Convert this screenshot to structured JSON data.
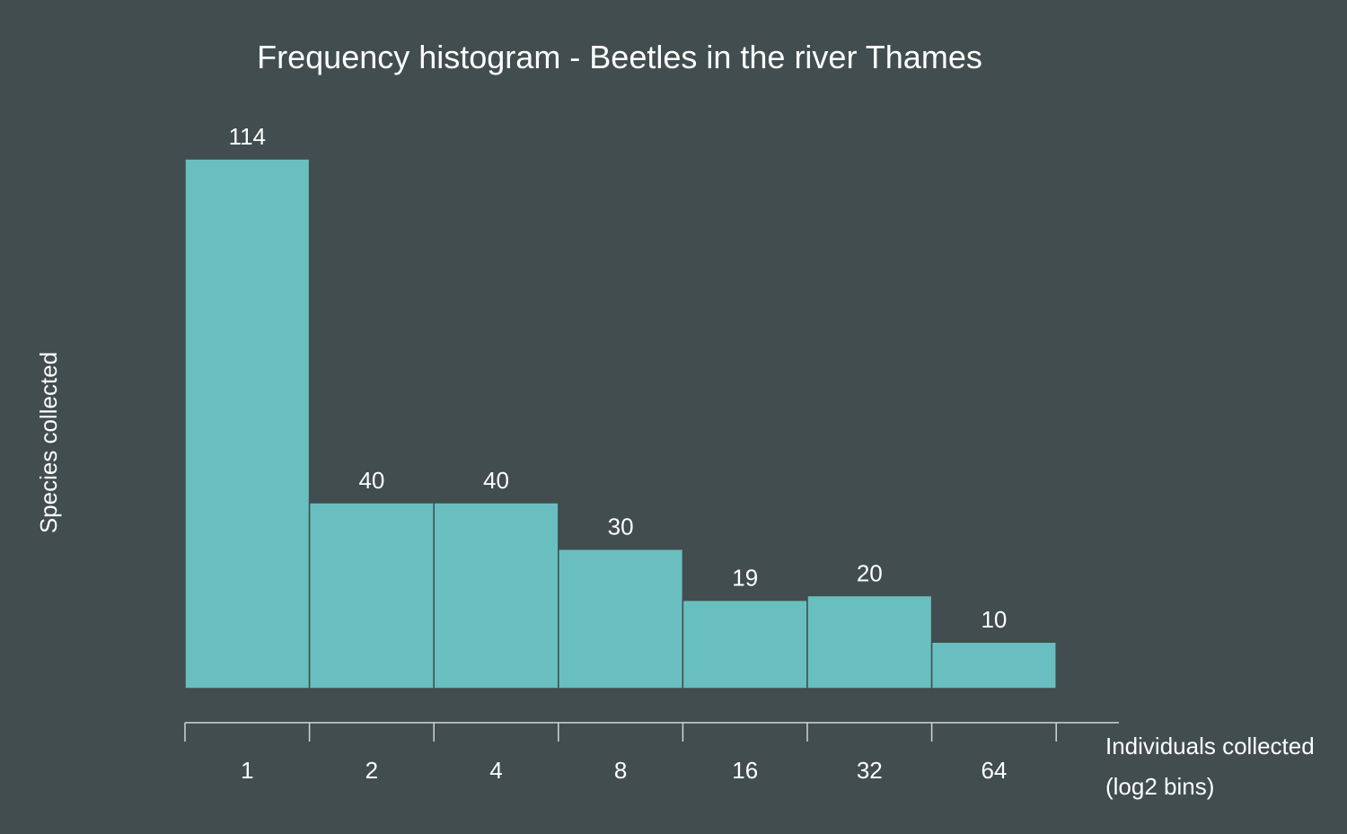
{
  "colors": {
    "background": "#414d4e",
    "bar": "#69bfbf",
    "bar_border": "#414d4e",
    "axis": "#cfd6d6",
    "text": "#ffffff"
  },
  "chart_data": {
    "type": "bar",
    "title": "Frequency histogram - Beetles in the river Thames",
    "xlabel": "Individuals collected",
    "xlabel_line2": "(log2 bins)",
    "ylabel": "Species collected",
    "categories": [
      "1",
      "2",
      "4",
      "8",
      "16",
      "32",
      "64"
    ],
    "values": [
      114,
      40,
      40,
      30,
      19,
      20,
      10
    ],
    "ylim": [
      0,
      114
    ],
    "grid": false,
    "legend": "none",
    "data_labels": true
  }
}
